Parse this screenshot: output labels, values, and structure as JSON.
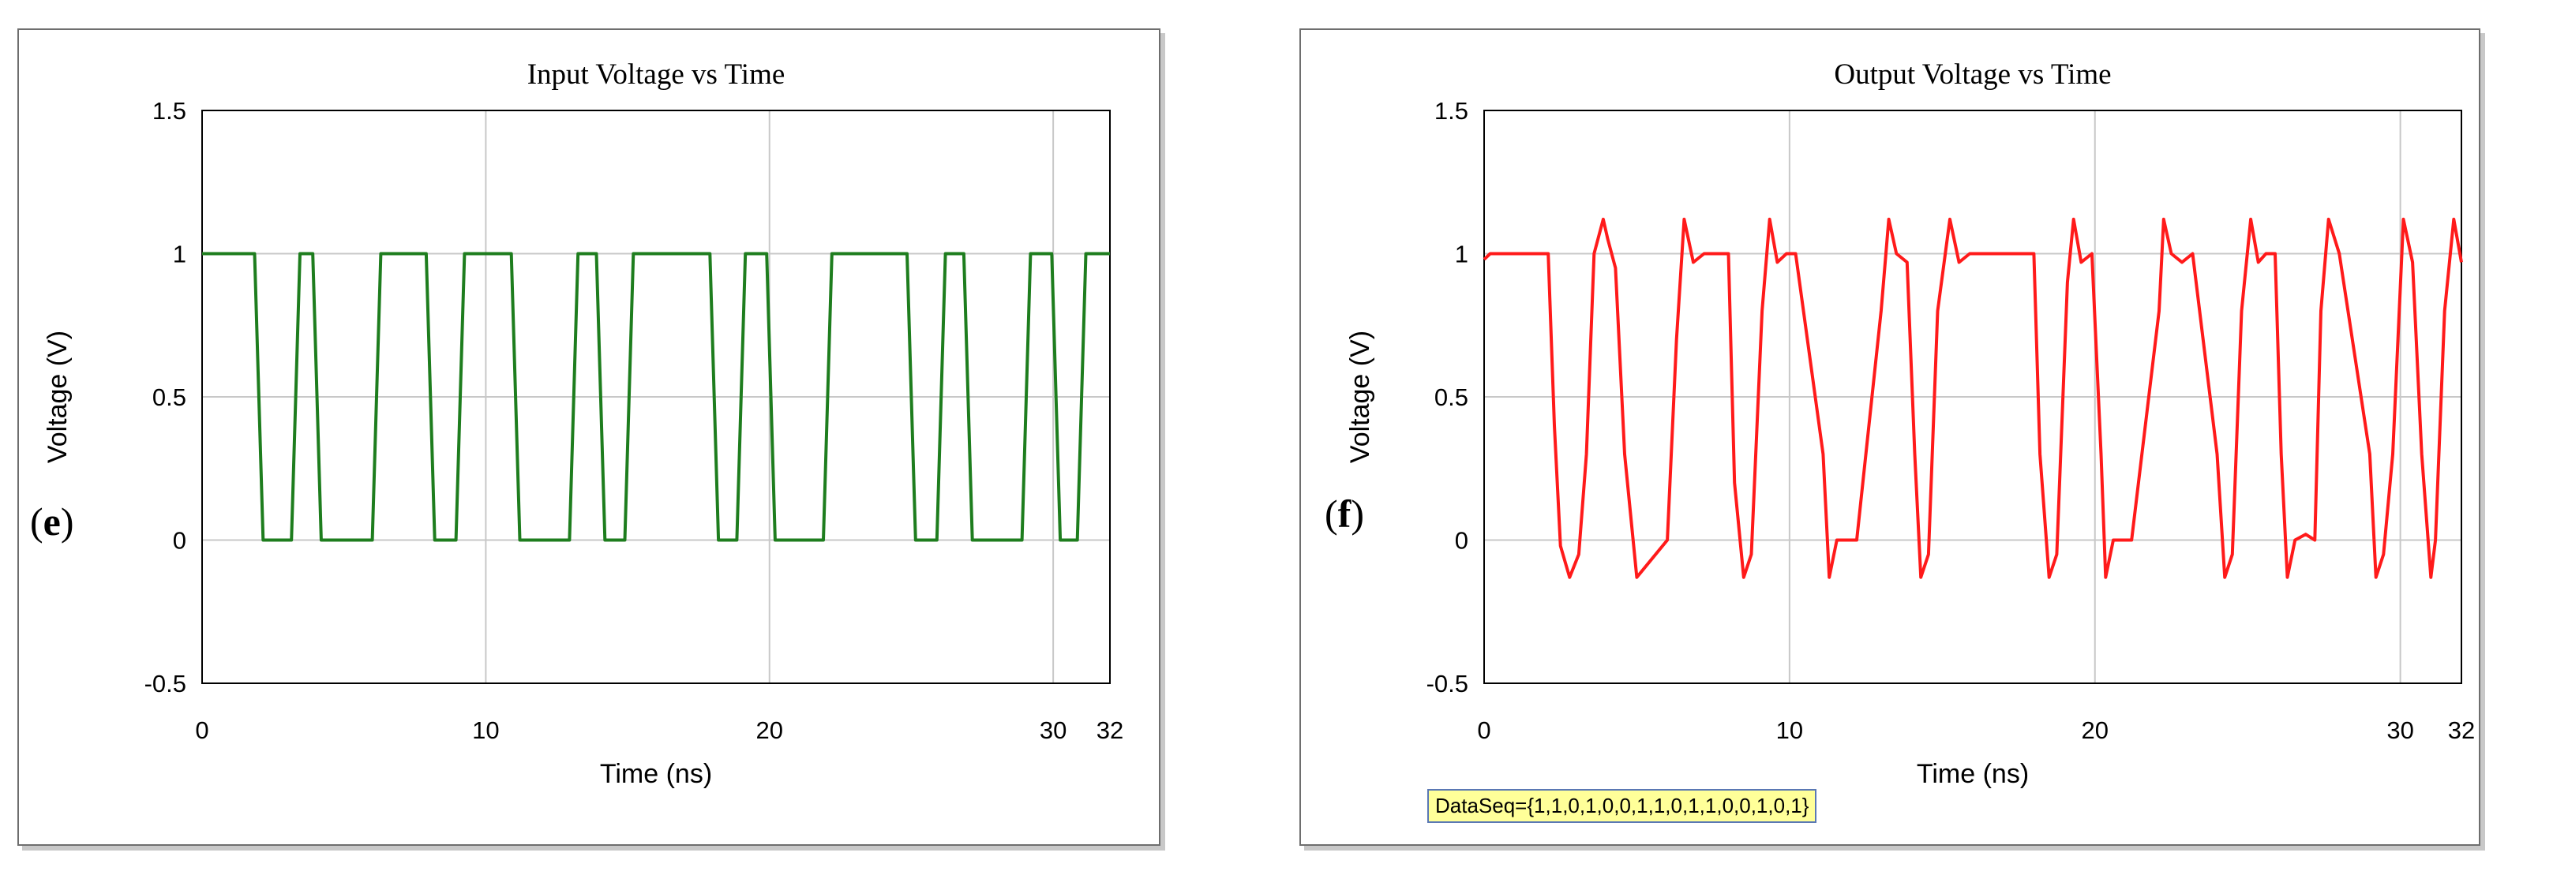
{
  "chart_data": [
    {
      "type": "line",
      "panel_label": "(e)",
      "title": "Input Voltage vs Time",
      "xlabel": "Time (ns)",
      "ylabel": "Voltage (V)",
      "xlim": [
        0,
        32
      ],
      "ylim": [
        -0.5,
        1.5
      ],
      "xticks": [
        0,
        10,
        20,
        30,
        32
      ],
      "yticks": [
        -0.5,
        0,
        0.5,
        1,
        1.5
      ],
      "ytick_labels": [
        "-0.5",
        "0",
        "0.5",
        "1",
        "1.5"
      ],
      "xtick_labels": [
        "0",
        "10",
        "20",
        "30",
        "32"
      ],
      "grid": true,
      "series": [
        {
          "color": "#1e7d1e",
          "x": [
            0,
            1.85,
            2.15,
            3.0,
            3.15,
            3.45,
            3.9,
            4.2,
            6.0,
            6.3,
            7.9,
            8.2,
            8.95,
            9.25,
            10.9,
            11.2,
            12.95,
            13.25,
            13.9,
            14.2,
            14.9,
            15.2,
            17.9,
            18.2,
            18.85,
            19.15,
            19.9,
            20.2,
            21.9,
            22.2,
            24.85,
            25.15,
            25.9,
            26.2,
            26.85,
            27.15,
            28.9,
            29.2,
            29.95,
            30.25,
            30.85,
            31.15,
            31.9,
            32
          ],
          "y": [
            1,
            1,
            0,
            0,
            0.0,
            1,
            1,
            0,
            0,
            1,
            1,
            0,
            0,
            1,
            1,
            0,
            0,
            1,
            1,
            0,
            0,
            1,
            1,
            0,
            0,
            1,
            1,
            0,
            0,
            1,
            1,
            0,
            0,
            1,
            1,
            0,
            0,
            1,
            1,
            0,
            0,
            1,
            1,
            1
          ]
        }
      ]
    },
    {
      "type": "line",
      "panel_label": "(f)",
      "title": "Output Voltage vs Time",
      "xlabel": "Time (ns)",
      "ylabel": "Voltage (V)",
      "xlim": [
        0,
        32
      ],
      "ylim": [
        -0.5,
        1.5
      ],
      "xticks": [
        0,
        10,
        20,
        30,
        32
      ],
      "yticks": [
        -0.5,
        0,
        0.5,
        1,
        1.5
      ],
      "ytick_labels": [
        "-0.5",
        "0",
        "0.5",
        "1",
        "1.5"
      ],
      "xtick_labels": [
        "0",
        "10",
        "20",
        "30",
        "32"
      ],
      "grid": true,
      "annotation": "DataSeq={1,1,0,1,0,0,1,1,0,1,1,0,0,1,0,1}",
      "series": [
        {
          "color": "#ff1a1a",
          "x": [
            0,
            0.2,
            2.1,
            2.3,
            2.5,
            2.8,
            3.1,
            3.35,
            3.6,
            3.9,
            4.05,
            4.3,
            4.6,
            5.0,
            6.0,
            6.3,
            6.55,
            6.85,
            7.2,
            8.0,
            8.2,
            8.5,
            8.75,
            9.1,
            9.35,
            9.6,
            9.9,
            10.2,
            11.1,
            11.3,
            11.55,
            11.9,
            12.2,
            13.0,
            13.25,
            13.5,
            13.85,
            14.1,
            14.3,
            14.55,
            14.85,
            15.25,
            15.55,
            15.9,
            16.3,
            18.0,
            18.2,
            18.5,
            18.75,
            19.1,
            19.3,
            19.55,
            19.9,
            20.2,
            20.35,
            20.6,
            20.9,
            21.2,
            22.1,
            22.25,
            22.5,
            22.85,
            23.2,
            24.0,
            24.25,
            24.5,
            24.8,
            25.1,
            25.35,
            25.6,
            25.9,
            26.1,
            26.3,
            26.55,
            26.9,
            27.2,
            27.4,
            27.65,
            28.0,
            29.0,
            29.2,
            29.45,
            29.75,
            30.1,
            30.4,
            30.7,
            31.0,
            31.15,
            31.45,
            31.75,
            32
          ],
          "y": [
            0.98,
            1,
            1,
            0.4,
            -0.02,
            -0.13,
            -0.05,
            0.3,
            1.0,
            1.12,
            1.05,
            0.95,
            0.3,
            -0.13,
            0.0,
            0.7,
            1.12,
            0.97,
            1.0,
            1.0,
            0.2,
            -0.13,
            -0.05,
            0.8,
            1.12,
            0.97,
            1.0,
            1.0,
            0.3,
            -0.13,
            0.0,
            0.0,
            0.0,
            0.8,
            1.12,
            1.0,
            0.97,
            0.3,
            -0.13,
            -0.05,
            0.8,
            1.12,
            0.97,
            1.0,
            1.0,
            1.0,
            0.3,
            -0.13,
            -0.05,
            0.9,
            1.12,
            0.97,
            1.0,
            0.3,
            -0.13,
            0.0,
            0.0,
            0.0,
            0.8,
            1.12,
            1.0,
            0.97,
            1.0,
            0.3,
            -0.13,
            -0.05,
            0.8,
            1.12,
            0.97,
            1.0,
            1.0,
            0.3,
            -0.13,
            0.0,
            0.02,
            0.0,
            0.8,
            1.12,
            1.0,
            0.3,
            -0.13,
            -0.05,
            0.3,
            1.12,
            0.97,
            0.3,
            -0.13,
            0.0,
            0.8,
            1.12,
            0.97
          ]
        }
      ]
    }
  ]
}
